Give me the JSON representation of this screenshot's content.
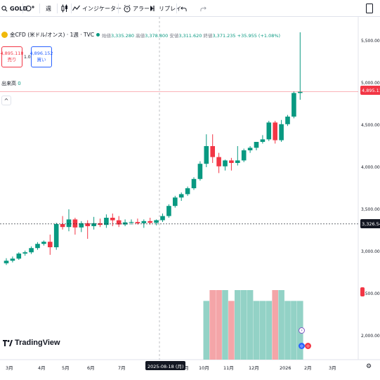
{
  "toolbar": {
    "symbol": "GOLD",
    "interval": "週",
    "indicators_label": "インジケーター",
    "alert_label": "アラート",
    "replay_label": "リプレイ"
  },
  "legend": {
    "title": "金CFD (米ドル/オンス) · 1週 · TVC",
    "open_label": "始値",
    "open": "3,335.280",
    "high_label": "高値",
    "high": "3,378.800",
    "low_label": "安値",
    "low": "3,311.620",
    "close_label": "終値",
    "close": "3,371.235",
    "change": "+35.955 (+1.08%)"
  },
  "trade": {
    "sell_price": "4,895.118",
    "sell_label": "売り",
    "spread": "1.034",
    "buy_price": "4,896.152",
    "buy_label": "買い"
  },
  "volume": {
    "label": "出来高",
    "value": "0"
  },
  "logo_text": "TradingView",
  "price_tags": {
    "last": "4,895.118",
    "crosshair": "3,326.545"
  },
  "crosshair_date": "2025-08-18 (月)",
  "colors": {
    "up": "#089981",
    "down": "#f23645",
    "vol_up": "#93d2c6",
    "vol_down": "#f4a5a8"
  },
  "chart_data": {
    "type": "candlestick",
    "ylim": [
      1700,
      5750
    ],
    "y_ticks": [
      "5,500.000",
      "5,000.000",
      "4,500.000",
      "4,000.000",
      "3,500.000",
      "3,000.000",
      "2,500.000",
      "2,000.000"
    ],
    "y_tick_values": [
      5500,
      5000,
      4500,
      4000,
      3500,
      3000,
      2500,
      2000
    ],
    "x_ticks": [
      "3月",
      "4月",
      "5月",
      "6月",
      "7月",
      "8月",
      "9月",
      "10月",
      "11月",
      "12月",
      "2026",
      "2月",
      "3月"
    ],
    "candles": [
      [
        2860,
        2920,
        2840,
        2890
      ],
      [
        2890,
        2940,
        2870,
        2915
      ],
      [
        2915,
        2990,
        2900,
        2975
      ],
      [
        2975,
        3010,
        2950,
        2990
      ],
      [
        2990,
        3060,
        2970,
        3040
      ],
      [
        3040,
        3110,
        3020,
        3090
      ],
      [
        3090,
        3130,
        3070,
        3115
      ],
      [
        3115,
        3200,
        2960,
        3050
      ],
      [
        3050,
        3340,
        3020,
        3325
      ],
      [
        3325,
        3420,
        3260,
        3290
      ],
      [
        3290,
        3500,
        3240,
        3380
      ],
      [
        3380,
        3400,
        3200,
        3285
      ],
      [
        3285,
        3360,
        3230,
        3335
      ],
      [
        3335,
        3370,
        3150,
        3300
      ],
      [
        3300,
        3410,
        3260,
        3335
      ],
      [
        3335,
        3390,
        3290,
        3315
      ],
      [
        3315,
        3440,
        3280,
        3400
      ],
      [
        3400,
        3450,
        3300,
        3370
      ],
      [
        3370,
        3420,
        3290,
        3320
      ],
      [
        3320,
        3380,
        3300,
        3345
      ],
      [
        3345,
        3380,
        3320,
        3350
      ],
      [
        3350,
        3390,
        3320,
        3335
      ],
      [
        3335,
        3380,
        3280,
        3360
      ],
      [
        3360,
        3400,
        3320,
        3340
      ],
      [
        3340,
        3380,
        3310,
        3371
      ],
      [
        3371,
        3450,
        3350,
        3420
      ],
      [
        3420,
        3560,
        3400,
        3540
      ],
      [
        3540,
        3660,
        3520,
        3640
      ],
      [
        3640,
        3700,
        3600,
        3680
      ],
      [
        3680,
        3770,
        3660,
        3750
      ],
      [
        3750,
        3880,
        3730,
        3860
      ],
      [
        3860,
        4070,
        3840,
        4040
      ],
      [
        4040,
        4390,
        4000,
        4250
      ],
      [
        4250,
        4390,
        4050,
        4120
      ],
      [
        4120,
        4170,
        3930,
        4010
      ],
      [
        4010,
        4090,
        3960,
        4080
      ],
      [
        4080,
        4110,
        3960,
        4050
      ],
      [
        4050,
        4250,
        4020,
        4080
      ],
      [
        4080,
        4220,
        4060,
        4200
      ],
      [
        4200,
        4250,
        4170,
        4230
      ],
      [
        4230,
        4300,
        4200,
        4300
      ],
      [
        4300,
        4380,
        4280,
        4330
      ],
      [
        4330,
        4550,
        4310,
        4530
      ],
      [
        4530,
        4550,
        4280,
        4320
      ],
      [
        4320,
        4560,
        4300,
        4510
      ],
      [
        4510,
        4620,
        4490,
        4600
      ],
      [
        4600,
        4900,
        4580,
        4880
      ],
      [
        4880,
        5600,
        4800,
        4895
      ]
    ],
    "volumes": [
      1,
      1,
      1,
      1,
      1,
      1,
      1,
      1,
      1,
      1,
      1,
      1,
      1,
      1,
      1,
      1,
      1,
      1,
      1,
      1,
      1,
      1,
      1,
      1,
      1,
      1,
      1,
      1,
      1,
      1,
      1,
      1,
      0.76,
      0.9,
      0.9,
      0.9,
      0.76,
      0.9,
      0.9,
      0.9,
      0.76,
      0.76,
      0.76,
      0.9,
      0.9,
      0.76,
      0.76,
      0.76
    ]
  }
}
